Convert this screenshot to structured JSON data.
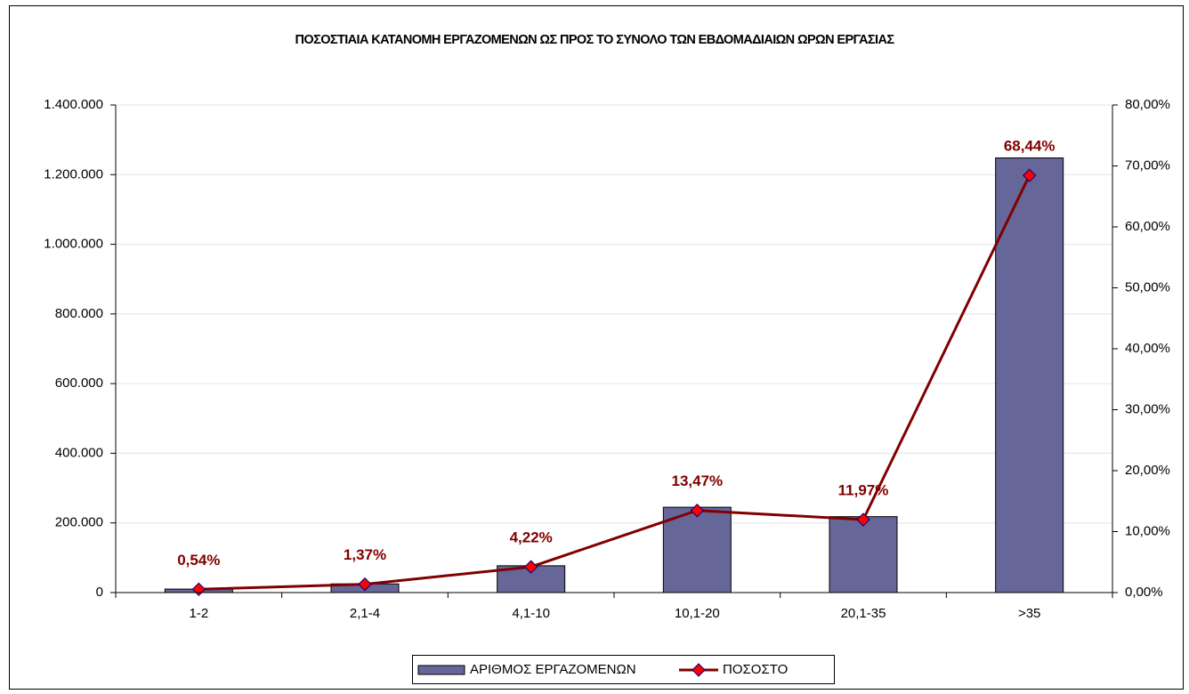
{
  "chart_data": {
    "type": "bar",
    "title": "ΠΟΣΟΣΤΙΑΙΑ ΚΑΤΑΝΟΜΗ ΕΡΓΑΖΟΜΕΝΩΝ ΩΣ ΠΡΟΣ ΤΟ ΣΥΝΟΛΟ ΤΩΝ ΕΒΔΟΜΑΔΙΑΙΩΝ ΩΡΩΝ ΕΡΓΑΣΙΑΣ",
    "categories": [
      "1-2",
      "2,1-4",
      "4,1-10",
      "10,1-20",
      "20,1-35",
      ">35"
    ],
    "series": [
      {
        "name": "ΑΡΙΘΜΟΣ ΕΡΓΑΖΟΜΕΝΩΝ",
        "type": "bar",
        "color": "#666699",
        "values": [
          10000,
          25000,
          77000,
          245000,
          218000,
          1248000
        ]
      },
      {
        "name": "ΠΟΣΟΣΤΟ",
        "type": "line",
        "axis": "y2",
        "color": "#800000",
        "marker_color": "#ff0000",
        "values": [
          0.54,
          1.37,
          4.22,
          13.47,
          11.97,
          68.44
        ],
        "value_labels": [
          "0,54%",
          "1,37%",
          "4,22%",
          "13,47%",
          "11,97%",
          "68,44%"
        ]
      }
    ],
    "ylim": [
      0,
      1400000
    ],
    "yticks": [
      0,
      {
        "value": 200000,
        "label": "200.000"
      },
      {
        "value": 400000,
        "label": "400.000"
      },
      {
        "value": 600000,
        "label": "600.000"
      },
      {
        "value": 800000,
        "label": "800.000"
      },
      {
        "value": 1000000,
        "label": "1.000.000"
      },
      {
        "value": 1200000,
        "label": "1.200.000"
      },
      {
        "value": 1400000,
        "label": "1.400.000"
      }
    ],
    "y2lim": [
      0,
      80
    ],
    "y2ticks": [
      {
        "value": 0,
        "label": "0,00%"
      },
      {
        "value": 10,
        "label": "10,00%"
      },
      {
        "value": 20,
        "label": "20,00%"
      },
      {
        "value": 30,
        "label": "30,00%"
      },
      {
        "value": 40,
        "label": "40,00%"
      },
      {
        "value": 50,
        "label": "50,00%"
      },
      {
        "value": 60,
        "label": "60,00%"
      },
      {
        "value": 70,
        "label": "70,00%"
      },
      {
        "value": 80,
        "label": "80,00%"
      }
    ],
    "grid": true,
    "legend": "bottom"
  }
}
